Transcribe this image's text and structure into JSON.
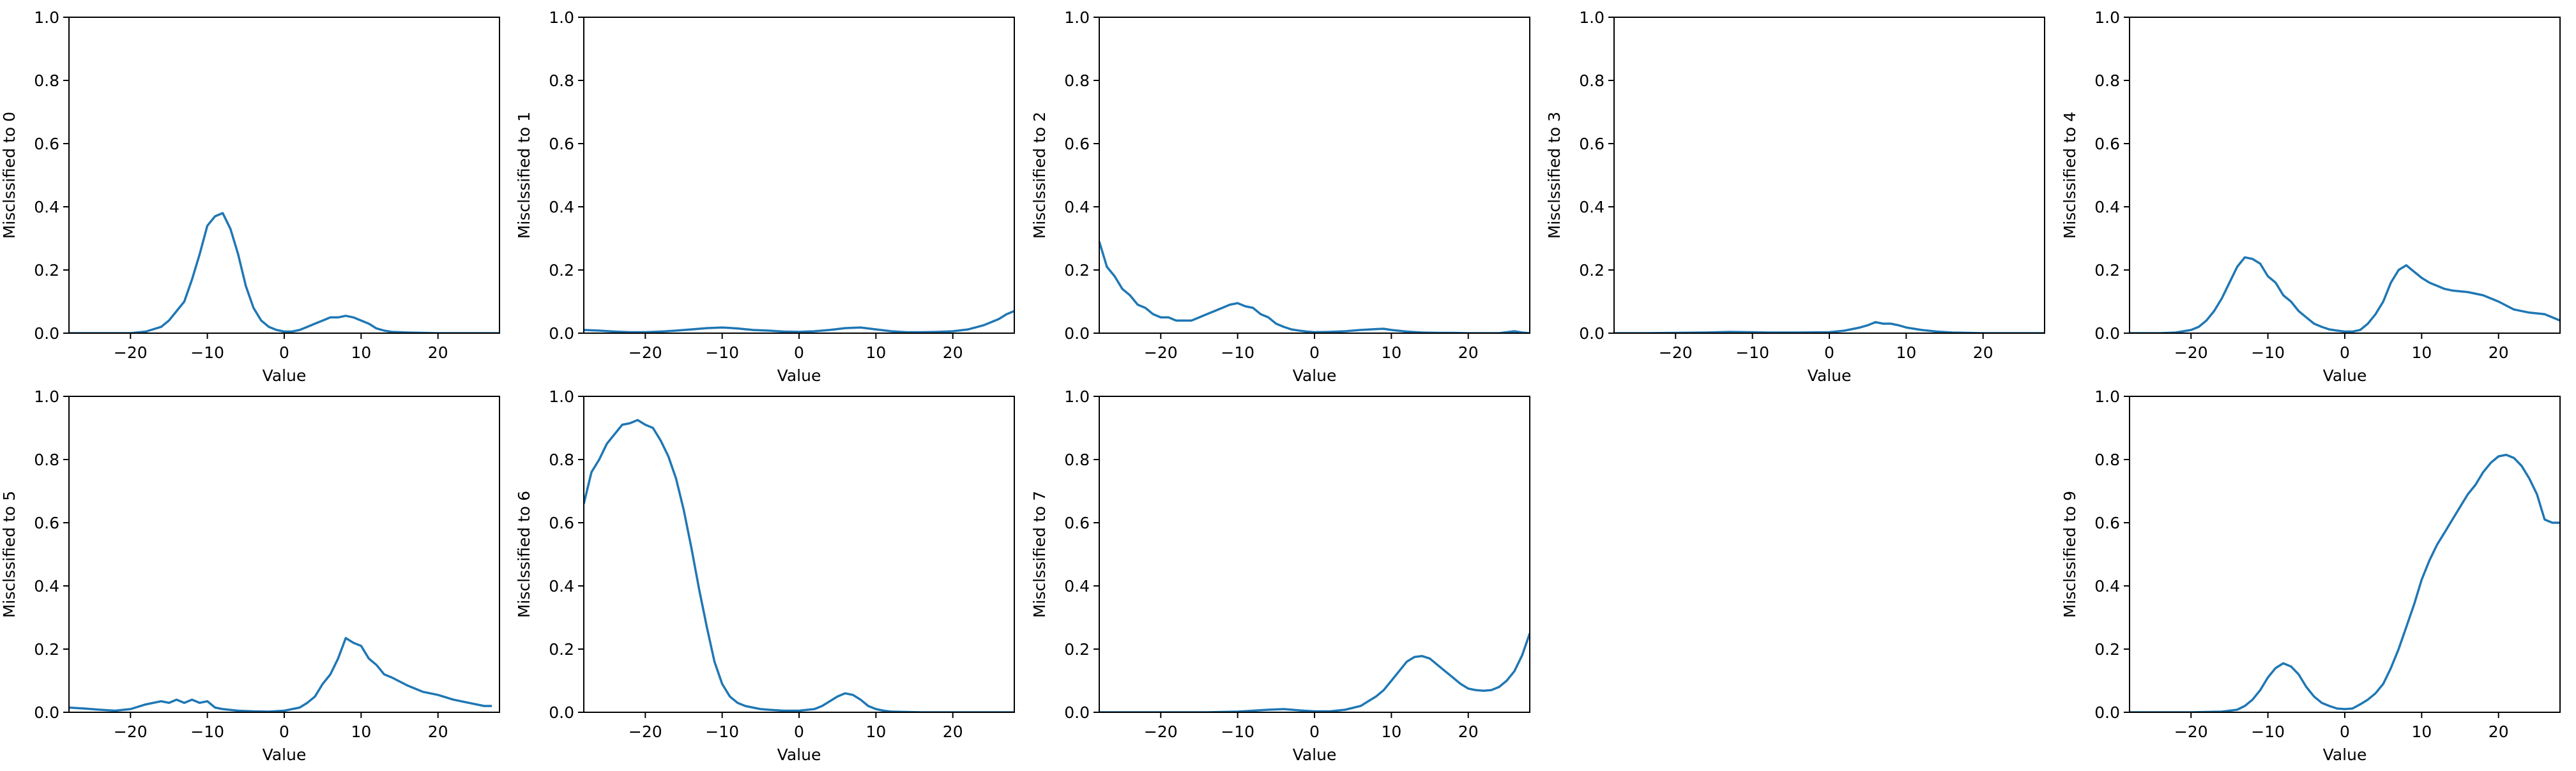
{
  "line_color": "#1f77b4",
  "chart_data": [
    {
      "type": "line",
      "xlabel": "Value",
      "ylabel": "Misclssified to 0",
      "xlim": [
        -28,
        28
      ],
      "ylim": [
        0,
        1
      ],
      "xticks": [
        -20,
        -10,
        0,
        10,
        20
      ],
      "yticks": [
        0.0,
        0.2,
        0.4,
        0.6,
        0.8,
        1.0
      ],
      "xtick_labels": [
        "−20",
        "−10",
        "0",
        "10",
        "20"
      ],
      "ytick_labels": [
        "0.0",
        "0.2",
        "0.4",
        "0.6",
        "0.8",
        "1.0"
      ],
      "series": [
        {
          "x": [
            -28,
            -22,
            -20,
            -18,
            -16,
            -15,
            -14,
            -13,
            -12,
            -11,
            -10,
            -9,
            -8,
            -7,
            -6,
            -5,
            -4,
            -3,
            -2,
            -1,
            0,
            1,
            2,
            3,
            4,
            5,
            6,
            7,
            8,
            9,
            10,
            11,
            12,
            13,
            14,
            16,
            18,
            20,
            28
          ],
          "y": [
            0,
            0,
            0,
            0.005,
            0.02,
            0.04,
            0.07,
            0.1,
            0.17,
            0.25,
            0.34,
            0.37,
            0.38,
            0.33,
            0.25,
            0.15,
            0.08,
            0.04,
            0.02,
            0.01,
            0.005,
            0.005,
            0.01,
            0.02,
            0.03,
            0.04,
            0.05,
            0.05,
            0.055,
            0.05,
            0.04,
            0.03,
            0.015,
            0.008,
            0.004,
            0.002,
            0.001,
            0,
            0
          ]
        }
      ]
    },
    {
      "type": "line",
      "xlabel": "Value",
      "ylabel": "Misclssified to 1",
      "xlim": [
        -28,
        28
      ],
      "ylim": [
        0,
        1
      ],
      "xticks": [
        -20,
        -10,
        0,
        10,
        20
      ],
      "yticks": [
        0.0,
        0.2,
        0.4,
        0.6,
        0.8,
        1.0
      ],
      "xtick_labels": [
        "−20",
        "−10",
        "0",
        "10",
        "20"
      ],
      "ytick_labels": [
        "0.0",
        "0.2",
        "0.4",
        "0.6",
        "0.8",
        "1.0"
      ],
      "series": [
        {
          "x": [
            -28,
            -26,
            -24,
            -22,
            -20,
            -18,
            -16,
            -14,
            -12,
            -10,
            -8,
            -6,
            -4,
            -2,
            0,
            2,
            4,
            6,
            8,
            10,
            12,
            14,
            16,
            18,
            20,
            22,
            24,
            25,
            26,
            27,
            28
          ],
          "y": [
            0.01,
            0.008,
            0.005,
            0.003,
            0.003,
            0.005,
            0.008,
            0.012,
            0.016,
            0.018,
            0.015,
            0.01,
            0.008,
            0.005,
            0.004,
            0.006,
            0.01,
            0.016,
            0.018,
            0.012,
            0.006,
            0.003,
            0.003,
            0.004,
            0.006,
            0.012,
            0.025,
            0.035,
            0.045,
            0.06,
            0.07
          ]
        }
      ]
    },
    {
      "type": "line",
      "xlabel": "Value",
      "ylabel": "Misclssified to 2",
      "xlim": [
        -28,
        28
      ],
      "ylim": [
        0,
        1
      ],
      "xticks": [
        -20,
        -10,
        0,
        10,
        20
      ],
      "yticks": [
        0.0,
        0.2,
        0.4,
        0.6,
        0.8,
        1.0
      ],
      "xtick_labels": [
        "−20",
        "−10",
        "0",
        "10",
        "20"
      ],
      "ytick_labels": [
        "0.0",
        "0.2",
        "0.4",
        "0.6",
        "0.8",
        "1.0"
      ],
      "series": [
        {
          "x": [
            -28,
            -27,
            -26,
            -25,
            -24,
            -23,
            -22,
            -21,
            -20,
            -19,
            -18,
            -17,
            -16,
            -15,
            -14,
            -13,
            -12,
            -11,
            -10,
            -9,
            -8,
            -7,
            -6,
            -5,
            -4,
            -3,
            -2,
            -1,
            0,
            2,
            4,
            6,
            8,
            9,
            10,
            12,
            14,
            16,
            18,
            20,
            22,
            24,
            25,
            26,
            27,
            28
          ],
          "y": [
            0.29,
            0.21,
            0.18,
            0.14,
            0.12,
            0.09,
            0.08,
            0.06,
            0.05,
            0.05,
            0.04,
            0.04,
            0.04,
            0.05,
            0.06,
            0.07,
            0.08,
            0.09,
            0.095,
            0.085,
            0.08,
            0.06,
            0.05,
            0.03,
            0.02,
            0.012,
            0.008,
            0.005,
            0.003,
            0.004,
            0.006,
            0.01,
            0.013,
            0.014,
            0.01,
            0.005,
            0.002,
            0.001,
            0.001,
            0,
            0,
            0,
            0.003,
            0.006,
            0.002,
            0
          ]
        }
      ]
    },
    {
      "type": "line",
      "xlabel": "Value",
      "ylabel": "Misclssified to 3",
      "xlim": [
        -28,
        28
      ],
      "ylim": [
        0,
        1
      ],
      "xticks": [
        -20,
        -10,
        0,
        10,
        20
      ],
      "yticks": [
        0.0,
        0.2,
        0.4,
        0.6,
        0.8,
        1.0
      ],
      "xtick_labels": [
        "−20",
        "−10",
        "0",
        "10",
        "20"
      ],
      "ytick_labels": [
        "0.0",
        "0.2",
        "0.4",
        "0.6",
        "0.8",
        "1.0"
      ],
      "series": [
        {
          "x": [
            -28,
            -24,
            -20,
            -16,
            -13,
            -10,
            -8,
            -4,
            0,
            2,
            4,
            5,
            6,
            7,
            8,
            9,
            10,
            12,
            14,
            16,
            20,
            28
          ],
          "y": [
            0,
            0,
            0.001,
            0.002,
            0.004,
            0.003,
            0.002,
            0.002,
            0.003,
            0.008,
            0.018,
            0.025,
            0.035,
            0.03,
            0.03,
            0.025,
            0.018,
            0.01,
            0.005,
            0.002,
            0,
            0
          ]
        }
      ]
    },
    {
      "type": "line",
      "xlabel": "Value",
      "ylabel": "Misclssified to 4",
      "xlim": [
        -28,
        28
      ],
      "ylim": [
        0,
        1
      ],
      "xticks": [
        -20,
        -10,
        0,
        10,
        20
      ],
      "yticks": [
        0.0,
        0.2,
        0.4,
        0.6,
        0.8,
        1.0
      ],
      "xtick_labels": [
        "−20",
        "−10",
        "0",
        "10",
        "20"
      ],
      "ytick_labels": [
        "0.0",
        "0.2",
        "0.4",
        "0.6",
        "0.8",
        "1.0"
      ],
      "series": [
        {
          "x": [
            -28,
            -26,
            -24,
            -22,
            -20,
            -19,
            -18,
            -17,
            -16,
            -15,
            -14,
            -13,
            -12,
            -11,
            -10,
            -9,
            -8,
            -7,
            -6,
            -5,
            -4,
            -3,
            -2,
            -1,
            0,
            1,
            2,
            3,
            4,
            5,
            6,
            7,
            8,
            9,
            10,
            11,
            12,
            13,
            14,
            16,
            18,
            20,
            22,
            24,
            26,
            27,
            28
          ],
          "y": [
            0,
            0,
            0,
            0.002,
            0.01,
            0.02,
            0.04,
            0.07,
            0.11,
            0.16,
            0.21,
            0.24,
            0.235,
            0.22,
            0.18,
            0.16,
            0.12,
            0.1,
            0.07,
            0.05,
            0.03,
            0.02,
            0.012,
            0.008,
            0.005,
            0.005,
            0.01,
            0.03,
            0.06,
            0.1,
            0.16,
            0.2,
            0.215,
            0.195,
            0.175,
            0.16,
            0.15,
            0.14,
            0.135,
            0.13,
            0.12,
            0.1,
            0.075,
            0.065,
            0.06,
            0.05,
            0.04
          ]
        }
      ]
    },
    {
      "type": "line",
      "xlabel": "Value",
      "ylabel": "Misclssified to 5",
      "xlim": [
        -28,
        28
      ],
      "ylim": [
        0,
        1
      ],
      "xticks": [
        -20,
        -10,
        0,
        10,
        20
      ],
      "yticks": [
        0.0,
        0.2,
        0.4,
        0.6,
        0.8,
        1.0
      ],
      "xtick_labels": [
        "−20",
        "−10",
        "0",
        "10",
        "20"
      ],
      "ytick_labels": [
        "0.0",
        "0.2",
        "0.4",
        "0.6",
        "0.8",
        "1.0"
      ],
      "series": [
        {
          "x": [
            -28,
            -26,
            -24,
            -22,
            -20,
            -18,
            -16,
            -15,
            -14,
            -13,
            -12,
            -11,
            -10,
            -9,
            -8,
            -6,
            -4,
            -2,
            0,
            2,
            3,
            4,
            5,
            6,
            7,
            8,
            9,
            10,
            11,
            12,
            13,
            14,
            16,
            18,
            20,
            22,
            24,
            26,
            27
          ],
          "y": [
            0.015,
            0.012,
            0.008,
            0.005,
            0.01,
            0.025,
            0.035,
            0.03,
            0.04,
            0.03,
            0.04,
            0.03,
            0.035,
            0.015,
            0.01,
            0.005,
            0.003,
            0.002,
            0.005,
            0.015,
            0.03,
            0.05,
            0.09,
            0.12,
            0.17,
            0.235,
            0.22,
            0.21,
            0.17,
            0.15,
            0.12,
            0.11,
            0.085,
            0.065,
            0.055,
            0.04,
            0.03,
            0.02,
            0.02
          ]
        }
      ]
    },
    {
      "type": "line",
      "xlabel": "Value",
      "ylabel": "Misclssified to 6",
      "xlim": [
        -28,
        28
      ],
      "ylim": [
        0,
        1
      ],
      "xticks": [
        -20,
        -10,
        0,
        10,
        20
      ],
      "yticks": [
        0.0,
        0.2,
        0.4,
        0.6,
        0.8,
        1.0
      ],
      "xtick_labels": [
        "−20",
        "−10",
        "0",
        "10",
        "20"
      ],
      "ytick_labels": [
        "0.0",
        "0.2",
        "0.4",
        "0.6",
        "0.8",
        "1.0"
      ],
      "series": [
        {
          "x": [
            -28,
            -27,
            -26,
            -25,
            -24,
            -23,
            -22,
            -21,
            -20,
            -19,
            -18,
            -17,
            -16,
            -15,
            -14,
            -13,
            -12,
            -11,
            -10,
            -9,
            -8,
            -7,
            -6,
            -5,
            -4,
            -2,
            0,
            2,
            3,
            4,
            5,
            6,
            7,
            8,
            9,
            10,
            11,
            12,
            14,
            16,
            18,
            20,
            24,
            28
          ],
          "y": [
            0.66,
            0.76,
            0.8,
            0.85,
            0.88,
            0.91,
            0.915,
            0.925,
            0.91,
            0.9,
            0.86,
            0.81,
            0.74,
            0.64,
            0.52,
            0.39,
            0.27,
            0.16,
            0.09,
            0.05,
            0.03,
            0.02,
            0.015,
            0.01,
            0.008,
            0.005,
            0.005,
            0.01,
            0.02,
            0.035,
            0.05,
            0.06,
            0.055,
            0.04,
            0.02,
            0.01,
            0.005,
            0.002,
            0.001,
            0,
            0,
            0,
            0,
            0
          ]
        }
      ]
    },
    {
      "type": "line",
      "xlabel": "Value",
      "ylabel": "Misclssified to 7",
      "xlim": [
        -28,
        28
      ],
      "ylim": [
        0,
        1
      ],
      "xticks": [
        -20,
        -10,
        0,
        10,
        20
      ],
      "yticks": [
        0.0,
        0.2,
        0.4,
        0.6,
        0.8,
        1.0
      ],
      "xtick_labels": [
        "−20",
        "−10",
        "0",
        "10",
        "20"
      ],
      "ytick_labels": [
        "0.0",
        "0.2",
        "0.4",
        "0.6",
        "0.8",
        "1.0"
      ],
      "series": [
        {
          "x": [
            -28,
            -20,
            -14,
            -10,
            -8,
            -6,
            -4,
            -2,
            0,
            2,
            4,
            6,
            8,
            9,
            10,
            11,
            12,
            13,
            14,
            15,
            16,
            17,
            18,
            19,
            20,
            21,
            22,
            23,
            24,
            25,
            26,
            27,
            28
          ],
          "y": [
            0,
            0,
            0,
            0.002,
            0.005,
            0.008,
            0.01,
            0.006,
            0.003,
            0.003,
            0.008,
            0.02,
            0.05,
            0.07,
            0.1,
            0.13,
            0.16,
            0.175,
            0.178,
            0.17,
            0.15,
            0.13,
            0.11,
            0.09,
            0.075,
            0.07,
            0.068,
            0.07,
            0.08,
            0.1,
            0.13,
            0.18,
            0.25
          ]
        }
      ]
    },
    {
      "type": "line",
      "xlabel": "Value",
      "ylabel": "Misclssified to 9",
      "xlim": [
        -28,
        28
      ],
      "ylim": [
        0,
        1
      ],
      "xticks": [
        -20,
        -10,
        0,
        10,
        20
      ],
      "yticks": [
        0.0,
        0.2,
        0.4,
        0.6,
        0.8,
        1.0
      ],
      "xtick_labels": [
        "−20",
        "−10",
        "0",
        "10",
        "20"
      ],
      "ytick_labels": [
        "0.0",
        "0.2",
        "0.4",
        "0.6",
        "0.8",
        "1.0"
      ],
      "series": [
        {
          "x": [
            -28,
            -20,
            -16,
            -14,
            -13,
            -12,
            -11,
            -10,
            -9,
            -8,
            -7,
            -6,
            -5,
            -4,
            -3,
            -2,
            -1,
            0,
            1,
            2,
            3,
            4,
            5,
            6,
            7,
            8,
            9,
            10,
            11,
            12,
            13,
            14,
            15,
            16,
            17,
            18,
            19,
            20,
            21,
            22,
            23,
            24,
            25,
            26,
            27,
            28
          ],
          "y": [
            0,
            0,
            0.002,
            0.008,
            0.02,
            0.04,
            0.07,
            0.11,
            0.14,
            0.155,
            0.145,
            0.12,
            0.08,
            0.05,
            0.03,
            0.02,
            0.012,
            0.01,
            0.012,
            0.025,
            0.04,
            0.06,
            0.09,
            0.14,
            0.2,
            0.27,
            0.34,
            0.42,
            0.48,
            0.53,
            0.57,
            0.61,
            0.65,
            0.69,
            0.72,
            0.76,
            0.79,
            0.81,
            0.815,
            0.805,
            0.78,
            0.74,
            0.69,
            0.61,
            0.6,
            0.6
          ]
        }
      ]
    }
  ]
}
